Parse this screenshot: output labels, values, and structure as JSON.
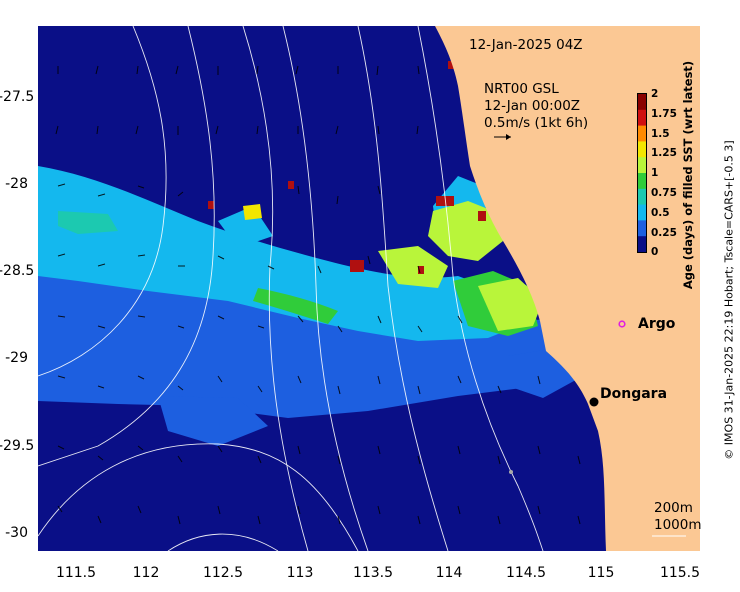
{
  "map": {
    "title": "12-Jan-2025 04Z",
    "product": "NRT00 GSL",
    "product_time": "12-Jan 00:00Z",
    "arrow_scale": "0.5m/s (1kt 6h)",
    "colorbar_title": "Age (days) of filled SST (wrt latest)",
    "colorbar_ticks": [
      "2",
      "1.75",
      "1.5",
      "1.25",
      "1",
      "0.75",
      "0.5",
      "0.25",
      "0"
    ],
    "colorbar_colors": [
      "#8a0000",
      "#d01010",
      "#ff8a00",
      "#f3e600",
      "#b9f53a",
      "#30cc3a",
      "#1cc9b0",
      "#14b8ee",
      "#1d5fe0",
      "#0a0f87"
    ],
    "credit": "© IMOS 31-Jan-2025 22:19 Hobart; Tscale=CARS+[-0.5 3]",
    "x_ticks": [
      "111.5",
      "112",
      "112.5",
      "113",
      "113.5",
      "114",
      "114.5",
      "115",
      "115.5"
    ],
    "y_ticks": [
      "-27.5",
      "-28",
      "-28.5",
      "-29",
      "-29.5",
      "-30"
    ],
    "places": {
      "argo": "Argo",
      "dongara": "Dongara"
    },
    "isobaths": {
      "shallow": "200m",
      "deep": "1000m"
    },
    "colors": {
      "land": "#fbc894",
      "ocean_deep": "#0a0f87",
      "argo_marker": "#e020e0"
    }
  }
}
